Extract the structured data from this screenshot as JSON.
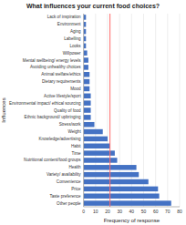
{
  "chart_data": {
    "type": "bar",
    "orientation": "horizontal",
    "title": "What influences your current food choices?",
    "xlabel": "Frequency of response",
    "ylabel": "Influences",
    "categories": [
      "Lack of inspiration",
      "Environment",
      "Aging",
      "Labelling",
      "Looks",
      "Willpower",
      "Mental wellbeing/ energy levels",
      "Avoiding unhealthy choices",
      "Animal welfare/ethics",
      "Dietary requirements",
      "Mood",
      "Active lifestyle/sport",
      "Environmental impact/ ethical sourcing",
      "Quality of food",
      "Ethnic background/ upbringing",
      "Stress/work",
      "Weight",
      "Knowledge/advertising",
      "Habit",
      "Time",
      "Nutritional content/food groups",
      "Health",
      "Variety/ availability",
      "Convenience",
      "Price",
      "Taste preference",
      "Other people"
    ],
    "values": [
      2,
      2,
      2,
      2,
      2,
      3,
      4,
      4,
      5,
      5,
      5,
      6,
      6,
      6,
      6,
      9,
      16,
      20,
      22,
      26,
      28,
      44,
      46,
      54,
      62,
      63,
      73
    ],
    "color": "#4472C4",
    "xlim": [
      0,
      80
    ],
    "xticks": [
      0,
      10,
      20,
      30,
      40,
      50,
      60,
      70,
      80
    ],
    "grid": true,
    "reference_line": {
      "value": 22,
      "color": "#FF6B6B"
    }
  }
}
